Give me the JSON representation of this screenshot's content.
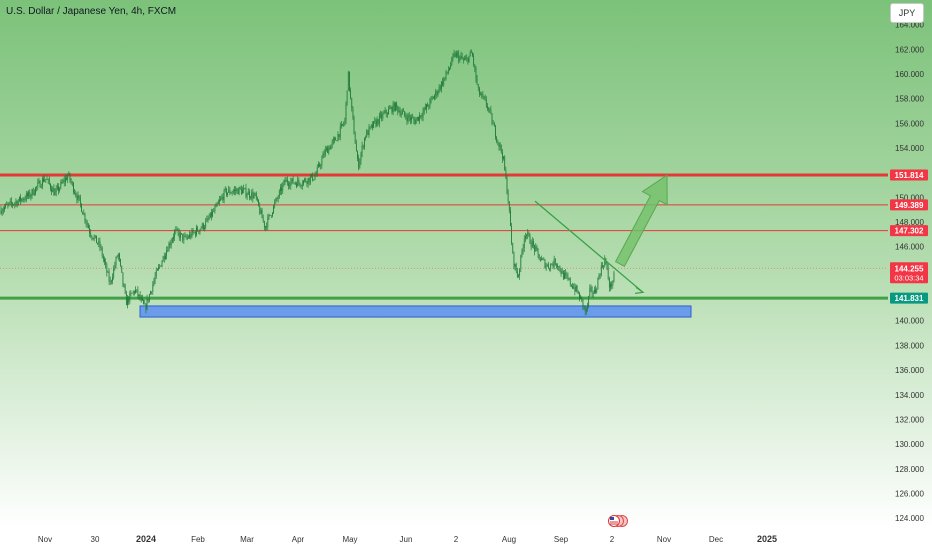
{
  "header": {
    "title": "U.S. Dollar / Japanese Yen, 4h, FXCM",
    "currency_button": "JPY"
  },
  "colors": {
    "bg_top": "#7cc27a",
    "bg_bottom": "#ffffff",
    "candle": "#1f7a3a",
    "resistance": "#e53935",
    "support": "#43a047",
    "zone_fill": "#5b8ff2",
    "zone_border": "#2f5fd0",
    "trendline": "#3aa04a",
    "arrow": "#73c069",
    "price_label_red": "#f23645",
    "price_label_green": "#089981",
    "axis_text": "#333333"
  },
  "chart_data": {
    "type": "candlestick",
    "symbol": "U.S. Dollar / Japanese Yen",
    "timeframe": "4h",
    "source": "FXCM",
    "ylim": [
      123.2,
      166.0
    ],
    "y_ticks": [
      124,
      126,
      128,
      130,
      132,
      134,
      136,
      138,
      140,
      142,
      144,
      146,
      148,
      150,
      152,
      154,
      156,
      158,
      160,
      162,
      164
    ],
    "x_ticks": [
      "Nov",
      "30",
      "2024",
      "Feb",
      "Mar",
      "Apr",
      "May",
      "Jun",
      "2",
      "Aug",
      "Sep",
      "2",
      "Nov",
      "Dec",
      "2025"
    ],
    "price_path": [
      [
        0,
        149.0
      ],
      [
        30,
        150.2
      ],
      [
        45,
        151.6
      ],
      [
        55,
        150.3
      ],
      [
        68,
        151.8
      ],
      [
        80,
        149.5
      ],
      [
        90,
        147.2
      ],
      [
        100,
        146.0
      ],
      [
        110,
        143.0
      ],
      [
        118,
        145.5
      ],
      [
        126,
        141.5
      ],
      [
        135,
        142.5
      ],
      [
        145,
        141.0
      ],
      [
        155,
        143.5
      ],
      [
        165,
        145.5
      ],
      [
        175,
        147.2
      ],
      [
        185,
        146.6
      ],
      [
        195,
        147.2
      ],
      [
        205,
        147.8
      ],
      [
        215,
        149.0
      ],
      [
        225,
        150.4
      ],
      [
        240,
        150.6
      ],
      [
        255,
        150.1
      ],
      [
        265,
        147.6
      ],
      [
        275,
        149.5
      ],
      [
        285,
        151.3
      ],
      [
        300,
        151.2
      ],
      [
        315,
        151.7
      ],
      [
        325,
        153.7
      ],
      [
        335,
        154.6
      ],
      [
        345,
        156.2
      ],
      [
        348,
        160.1
      ],
      [
        352,
        156.8
      ],
      [
        358,
        152.5
      ],
      [
        365,
        155.0
      ],
      [
        375,
        156.0
      ],
      [
        385,
        156.8
      ],
      [
        395,
        157.4
      ],
      [
        405,
        156.6
      ],
      [
        415,
        156.2
      ],
      [
        425,
        157.1
      ],
      [
        435,
        158.3
      ],
      [
        445,
        159.7
      ],
      [
        455,
        161.6
      ],
      [
        465,
        161.0
      ],
      [
        472,
        161.7
      ],
      [
        478,
        158.6
      ],
      [
        488,
        157.3
      ],
      [
        495,
        155.3
      ],
      [
        503,
        153.3
      ],
      [
        508,
        150.0
      ],
      [
        513,
        145.0
      ],
      [
        518,
        143.5
      ],
      [
        525,
        147.2
      ],
      [
        533,
        146.1
      ],
      [
        540,
        145.0
      ],
      [
        548,
        144.4
      ],
      [
        556,
        144.8
      ],
      [
        563,
        143.7
      ],
      [
        570,
        143.1
      ],
      [
        576,
        142.5
      ],
      [
        582,
        141.5
      ],
      [
        586,
        140.6
      ],
      [
        590,
        142.4
      ],
      [
        595,
        142.3
      ],
      [
        600,
        144.0
      ],
      [
        605,
        145.0
      ],
      [
        610,
        142.6
      ],
      [
        614,
        143.6
      ]
    ],
    "horizontal_levels": [
      {
        "price": 151.814,
        "label": "151.814",
        "style": "thick",
        "color": "red"
      },
      {
        "price": 149.389,
        "label": "149.389",
        "style": "thin",
        "color": "red"
      },
      {
        "price": 147.302,
        "label": "147.302",
        "style": "thin",
        "color": "red"
      },
      {
        "price": 141.831,
        "label": "141.831",
        "style": "thick",
        "color": "green"
      }
    ],
    "current_price": {
      "price": 144.255,
      "label": "144.255",
      "countdown": "03:03:34"
    },
    "support_zone": {
      "price_top": 141.2,
      "price_bottom": 140.3
    },
    "trendline": {
      "from": [
        535,
        149.7
      ],
      "to": [
        643,
        142.3
      ]
    },
    "arrow": {
      "from": [
        620,
        144.6
      ],
      "to": [
        667,
        151.8
      ]
    }
  }
}
